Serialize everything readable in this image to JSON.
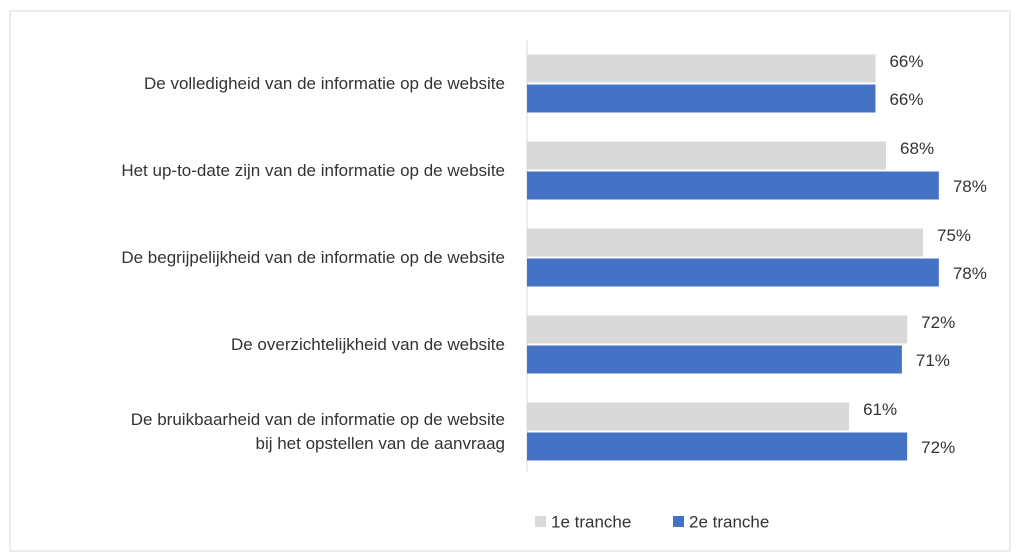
{
  "chart_data": {
    "type": "bar",
    "orientation": "horizontal",
    "categories": [
      "De volledigheid van de informatie op de website",
      "Het up-to-date zijn van de informatie op de website",
      "De begrijpelijkheid van de informatie op de website",
      "De overzichtelijkheid van de website",
      "De bruikbaarheid van de informatie op de website\nbij het opstellen van de aanvraag"
    ],
    "series": [
      {
        "name": "1e tranche",
        "color": "#d9d9d9",
        "values": [
          66,
          68,
          75,
          72,
          61
        ],
        "value_labels": [
          "66%",
          "68%",
          "75%",
          "72%",
          "61%"
        ]
      },
      {
        "name": "2e tranche",
        "color": "#4472c4",
        "values": [
          66,
          78,
          78,
          71,
          72
        ],
        "value_labels": [
          "66%",
          "78%",
          "78%",
          "71%",
          "72%"
        ]
      }
    ],
    "legend": "bottom"
  }
}
